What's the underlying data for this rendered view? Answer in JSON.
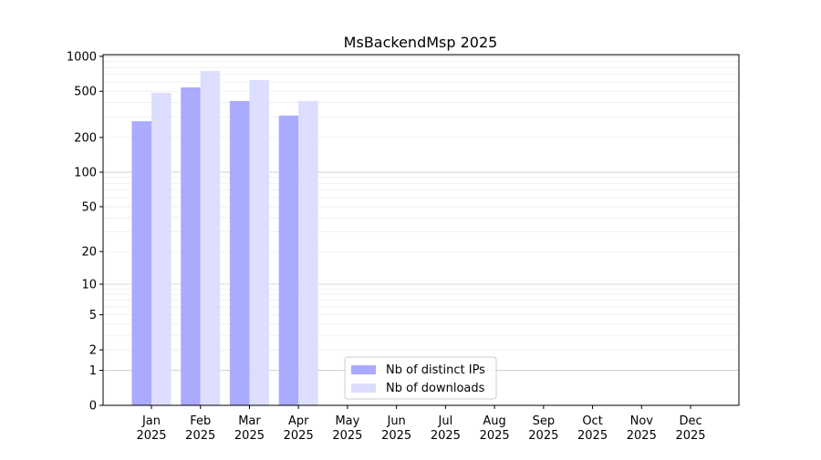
{
  "chart_data": {
    "type": "bar",
    "title": "MsBackendMsp 2025",
    "xlabel": "",
    "ylabel": "",
    "yscale": "symlog (log10(1+y))",
    "ylim": [
      0,
      1035
    ],
    "yticks": [
      "0",
      "1",
      "2",
      "5",
      "10",
      "20",
      "50",
      "100",
      "200",
      "500",
      "1000"
    ],
    "ytick_values": [
      0,
      1,
      2,
      5,
      10,
      20,
      50,
      100,
      200,
      500,
      1000
    ],
    "grid": true,
    "legend_position": "bottom-center",
    "categories": [
      [
        "Jan",
        "2025"
      ],
      [
        "Feb",
        "2025"
      ],
      [
        "Mar",
        "2025"
      ],
      [
        "Apr",
        "2025"
      ],
      [
        "May",
        "2025"
      ],
      [
        "Jun",
        "2025"
      ],
      [
        "Jul",
        "2025"
      ],
      [
        "Aug",
        "2025"
      ],
      [
        "Sep",
        "2025"
      ],
      [
        "Oct",
        "2025"
      ],
      [
        "Nov",
        "2025"
      ],
      [
        "Dec",
        "2025"
      ]
    ],
    "series": [
      {
        "name": "Nb of distinct IPs",
        "color": "#aaaaff",
        "values": [
          276,
          540,
          412,
          309,
          null,
          null,
          null,
          null,
          null,
          null,
          null,
          null
        ]
      },
      {
        "name": "Nb of downloads",
        "color": "#ddddff",
        "values": [
          485,
          748,
          625,
          412,
          null,
          null,
          null,
          null,
          null,
          null,
          null,
          null
        ]
      }
    ]
  }
}
